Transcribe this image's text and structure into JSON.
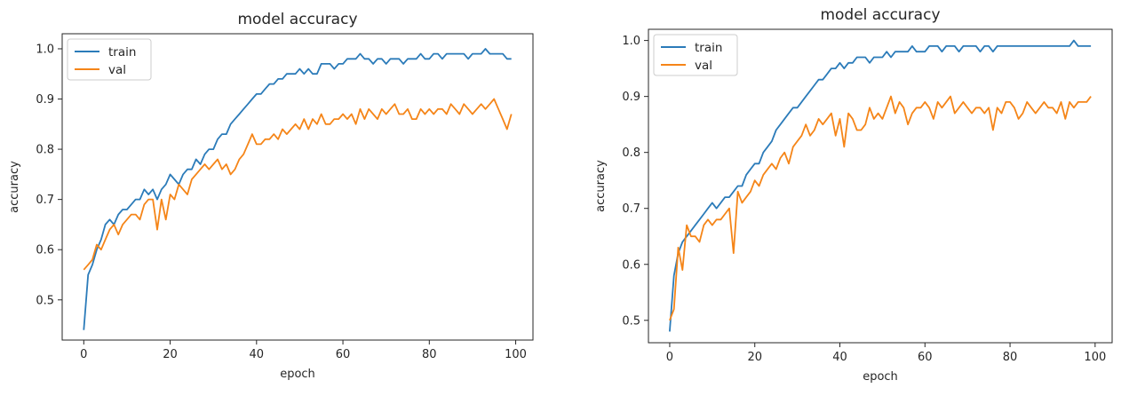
{
  "colors": {
    "train": "#2b7bb9",
    "val": "#f58518",
    "frame": "#262626"
  },
  "chart_data": [
    {
      "type": "line",
      "title": "model accuracy",
      "xlabel": "epoch",
      "ylabel": "accuracy",
      "xlim": [
        -5,
        104
      ],
      "ylim": [
        0.42,
        1.03
      ],
      "xticks": [
        0,
        20,
        40,
        60,
        80,
        100
      ],
      "yticks": [
        0.5,
        0.6,
        0.7,
        0.8,
        0.9,
        1.0
      ],
      "xtick_labels": [
        "0",
        "20",
        "40",
        "60",
        "80",
        "100"
      ],
      "ytick_labels": [
        "0.5",
        "0.6",
        "0.7",
        "0.8",
        "0.9",
        "1.0"
      ],
      "legend_position": "upper-left",
      "grid": false,
      "series": [
        {
          "name": "train",
          "color": "#2b7bb9",
          "x": [
            0,
            1,
            2,
            3,
            4,
            5,
            6,
            7,
            8,
            9,
            10,
            11,
            12,
            13,
            14,
            15,
            16,
            17,
            18,
            19,
            20,
            21,
            22,
            23,
            24,
            25,
            26,
            27,
            28,
            29,
            30,
            31,
            32,
            33,
            34,
            35,
            36,
            37,
            38,
            39,
            40,
            41,
            42,
            43,
            44,
            45,
            46,
            47,
            48,
            49,
            50,
            51,
            52,
            53,
            54,
            55,
            56,
            57,
            58,
            59,
            60,
            61,
            62,
            63,
            64,
            65,
            66,
            67,
            68,
            69,
            70,
            71,
            72,
            73,
            74,
            75,
            76,
            77,
            78,
            79,
            80,
            81,
            82,
            83,
            84,
            85,
            86,
            87,
            88,
            89,
            90,
            91,
            92,
            93,
            94,
            95,
            96,
            97,
            98,
            99
          ],
          "values": [
            0.44,
            0.55,
            0.57,
            0.6,
            0.62,
            0.65,
            0.66,
            0.65,
            0.67,
            0.68,
            0.68,
            0.69,
            0.7,
            0.7,
            0.72,
            0.71,
            0.72,
            0.7,
            0.72,
            0.73,
            0.75,
            0.74,
            0.73,
            0.75,
            0.76,
            0.76,
            0.78,
            0.77,
            0.79,
            0.8,
            0.8,
            0.82,
            0.83,
            0.83,
            0.85,
            0.86,
            0.87,
            0.88,
            0.89,
            0.9,
            0.91,
            0.91,
            0.92,
            0.93,
            0.93,
            0.94,
            0.94,
            0.95,
            0.95,
            0.95,
            0.96,
            0.95,
            0.96,
            0.95,
            0.95,
            0.97,
            0.97,
            0.97,
            0.96,
            0.97,
            0.97,
            0.98,
            0.98,
            0.98,
            0.99,
            0.98,
            0.98,
            0.97,
            0.98,
            0.98,
            0.97,
            0.98,
            0.98,
            0.98,
            0.97,
            0.98,
            0.98,
            0.98,
            0.99,
            0.98,
            0.98,
            0.99,
            0.99,
            0.98,
            0.99,
            0.99,
            0.99,
            0.99,
            0.99,
            0.98,
            0.99,
            0.99,
            0.99,
            1.0,
            0.99,
            0.99,
            0.99,
            0.99,
            0.98,
            0.98
          ]
        },
        {
          "name": "val",
          "color": "#f58518",
          "x": [
            0,
            1,
            2,
            3,
            4,
            5,
            6,
            7,
            8,
            9,
            10,
            11,
            12,
            13,
            14,
            15,
            16,
            17,
            18,
            19,
            20,
            21,
            22,
            23,
            24,
            25,
            26,
            27,
            28,
            29,
            30,
            31,
            32,
            33,
            34,
            35,
            36,
            37,
            38,
            39,
            40,
            41,
            42,
            43,
            44,
            45,
            46,
            47,
            48,
            49,
            50,
            51,
            52,
            53,
            54,
            55,
            56,
            57,
            58,
            59,
            60,
            61,
            62,
            63,
            64,
            65,
            66,
            67,
            68,
            69,
            70,
            71,
            72,
            73,
            74,
            75,
            76,
            77,
            78,
            79,
            80,
            81,
            82,
            83,
            84,
            85,
            86,
            87,
            88,
            89,
            90,
            91,
            92,
            93,
            94,
            95,
            96,
            97,
            98,
            99
          ],
          "values": [
            0.56,
            0.57,
            0.58,
            0.61,
            0.6,
            0.62,
            0.64,
            0.65,
            0.63,
            0.65,
            0.66,
            0.67,
            0.67,
            0.66,
            0.69,
            0.7,
            0.7,
            0.64,
            0.7,
            0.66,
            0.71,
            0.7,
            0.73,
            0.72,
            0.71,
            0.74,
            0.75,
            0.76,
            0.77,
            0.76,
            0.77,
            0.78,
            0.76,
            0.77,
            0.75,
            0.76,
            0.78,
            0.79,
            0.81,
            0.83,
            0.81,
            0.81,
            0.82,
            0.82,
            0.83,
            0.82,
            0.84,
            0.83,
            0.84,
            0.85,
            0.84,
            0.86,
            0.84,
            0.86,
            0.85,
            0.87,
            0.85,
            0.85,
            0.86,
            0.86,
            0.87,
            0.86,
            0.87,
            0.85,
            0.88,
            0.86,
            0.88,
            0.87,
            0.86,
            0.88,
            0.87,
            0.88,
            0.89,
            0.87,
            0.87,
            0.88,
            0.86,
            0.86,
            0.88,
            0.87,
            0.88,
            0.87,
            0.88,
            0.88,
            0.87,
            0.89,
            0.88,
            0.87,
            0.89,
            0.88,
            0.87,
            0.88,
            0.89,
            0.88,
            0.89,
            0.9,
            0.88,
            0.86,
            0.84,
            0.87
          ]
        }
      ]
    },
    {
      "type": "line",
      "title": "model accuracy",
      "xlabel": "epoch",
      "ylabel": "accuracy",
      "xlim": [
        -5,
        104
      ],
      "ylim": [
        0.46,
        1.02
      ],
      "xticks": [
        0,
        20,
        40,
        60,
        80,
        100
      ],
      "yticks": [
        0.5,
        0.6,
        0.7,
        0.8,
        0.9,
        1.0
      ],
      "xtick_labels": [
        "0",
        "20",
        "40",
        "60",
        "80",
        "100"
      ],
      "ytick_labels": [
        "0.5",
        "0.6",
        "0.7",
        "0.8",
        "0.9",
        "1.0"
      ],
      "legend_position": "upper-left",
      "grid": false,
      "series": [
        {
          "name": "train",
          "color": "#2b7bb9",
          "x": [
            0,
            1,
            2,
            3,
            4,
            5,
            6,
            7,
            8,
            9,
            10,
            11,
            12,
            13,
            14,
            15,
            16,
            17,
            18,
            19,
            20,
            21,
            22,
            23,
            24,
            25,
            26,
            27,
            28,
            29,
            30,
            31,
            32,
            33,
            34,
            35,
            36,
            37,
            38,
            39,
            40,
            41,
            42,
            43,
            44,
            45,
            46,
            47,
            48,
            49,
            50,
            51,
            52,
            53,
            54,
            55,
            56,
            57,
            58,
            59,
            60,
            61,
            62,
            63,
            64,
            65,
            66,
            67,
            68,
            69,
            70,
            71,
            72,
            73,
            74,
            75,
            76,
            77,
            78,
            79,
            80,
            81,
            82,
            83,
            84,
            85,
            86,
            87,
            88,
            89,
            90,
            91,
            92,
            93,
            94,
            95,
            96,
            97,
            98,
            99
          ],
          "values": [
            0.48,
            0.58,
            0.62,
            0.64,
            0.65,
            0.66,
            0.67,
            0.68,
            0.69,
            0.7,
            0.71,
            0.7,
            0.71,
            0.72,
            0.72,
            0.73,
            0.74,
            0.74,
            0.76,
            0.77,
            0.78,
            0.78,
            0.8,
            0.81,
            0.82,
            0.84,
            0.85,
            0.86,
            0.87,
            0.88,
            0.88,
            0.89,
            0.9,
            0.91,
            0.92,
            0.93,
            0.93,
            0.94,
            0.95,
            0.95,
            0.96,
            0.95,
            0.96,
            0.96,
            0.97,
            0.97,
            0.97,
            0.96,
            0.97,
            0.97,
            0.97,
            0.98,
            0.97,
            0.98,
            0.98,
            0.98,
            0.98,
            0.99,
            0.98,
            0.98,
            0.98,
            0.99,
            0.99,
            0.99,
            0.98,
            0.99,
            0.99,
            0.99,
            0.98,
            0.99,
            0.99,
            0.99,
            0.99,
            0.98,
            0.99,
            0.99,
            0.98,
            0.99,
            0.99,
            0.99,
            0.99,
            0.99,
            0.99,
            0.99,
            0.99,
            0.99,
            0.99,
            0.99,
            0.99,
            0.99,
            0.99,
            0.99,
            0.99,
            0.99,
            0.99,
            1.0,
            0.99,
            0.99,
            0.99,
            0.99
          ]
        },
        {
          "name": "val",
          "color": "#f58518",
          "x": [
            0,
            1,
            2,
            3,
            4,
            5,
            6,
            7,
            8,
            9,
            10,
            11,
            12,
            13,
            14,
            15,
            16,
            17,
            18,
            19,
            20,
            21,
            22,
            23,
            24,
            25,
            26,
            27,
            28,
            29,
            30,
            31,
            32,
            33,
            34,
            35,
            36,
            37,
            38,
            39,
            40,
            41,
            42,
            43,
            44,
            45,
            46,
            47,
            48,
            49,
            50,
            51,
            52,
            53,
            54,
            55,
            56,
            57,
            58,
            59,
            60,
            61,
            62,
            63,
            64,
            65,
            66,
            67,
            68,
            69,
            70,
            71,
            72,
            73,
            74,
            75,
            76,
            77,
            78,
            79,
            80,
            81,
            82,
            83,
            84,
            85,
            86,
            87,
            88,
            89,
            90,
            91,
            92,
            93,
            94,
            95,
            96,
            97,
            98,
            99
          ],
          "values": [
            0.5,
            0.52,
            0.63,
            0.59,
            0.67,
            0.65,
            0.65,
            0.64,
            0.67,
            0.68,
            0.67,
            0.68,
            0.68,
            0.69,
            0.7,
            0.62,
            0.73,
            0.71,
            0.72,
            0.73,
            0.75,
            0.74,
            0.76,
            0.77,
            0.78,
            0.77,
            0.79,
            0.8,
            0.78,
            0.81,
            0.82,
            0.83,
            0.85,
            0.83,
            0.84,
            0.86,
            0.85,
            0.86,
            0.87,
            0.83,
            0.86,
            0.81,
            0.87,
            0.86,
            0.84,
            0.84,
            0.85,
            0.88,
            0.86,
            0.87,
            0.86,
            0.88,
            0.9,
            0.87,
            0.89,
            0.88,
            0.85,
            0.87,
            0.88,
            0.88,
            0.89,
            0.88,
            0.86,
            0.89,
            0.88,
            0.89,
            0.9,
            0.87,
            0.88,
            0.89,
            0.88,
            0.87,
            0.88,
            0.88,
            0.87,
            0.88,
            0.84,
            0.88,
            0.87,
            0.89,
            0.89,
            0.88,
            0.86,
            0.87,
            0.89,
            0.88,
            0.87,
            0.88,
            0.89,
            0.88,
            0.88,
            0.87,
            0.89,
            0.86,
            0.89,
            0.88,
            0.89,
            0.89,
            0.89,
            0.9
          ]
        }
      ]
    }
  ]
}
